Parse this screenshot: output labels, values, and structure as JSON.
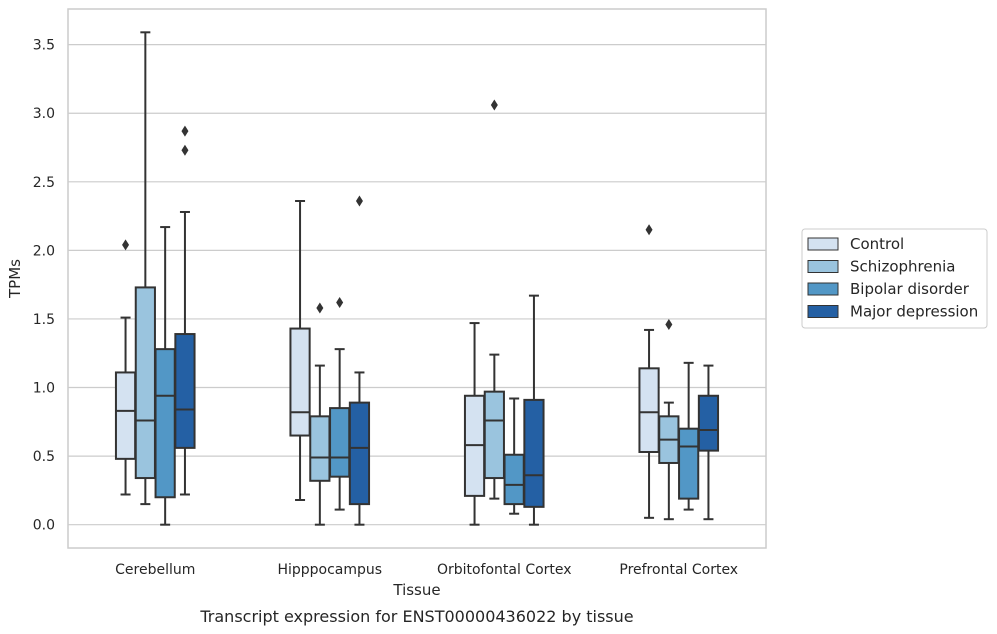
{
  "caption": "Transcript expression for ENST00000436022 by tissue",
  "chart_data": {
    "type": "boxplot",
    "title": "",
    "xlabel": "Tissue",
    "ylabel": "TPMs",
    "ylim": [
      -0.17,
      3.76
    ],
    "yticks": [
      "0.0",
      "0.5",
      "1.0",
      "1.5",
      "2.0",
      "2.5",
      "3.0",
      "3.5"
    ],
    "grid": "horizontal",
    "legend_position": "right",
    "categories": [
      "Cerebellum",
      "Hipppocampus",
      "Orbitofontal Cortex",
      "Prefrontal Cortex"
    ],
    "series": [
      {
        "name": "Control",
        "color": "#d4e2f1",
        "boxes": [
          {
            "whisker_low": 0.22,
            "q1": 0.48,
            "median": 0.83,
            "q3": 1.11,
            "whisker_high": 1.51,
            "outliers": [
              2.04
            ]
          },
          {
            "whisker_low": 0.18,
            "q1": 0.65,
            "median": 0.82,
            "q3": 1.43,
            "whisker_high": 2.36,
            "outliers": []
          },
          {
            "whisker_low": 0.0,
            "q1": 0.21,
            "median": 0.58,
            "q3": 0.94,
            "whisker_high": 1.47,
            "outliers": []
          },
          {
            "whisker_low": 0.05,
            "q1": 0.53,
            "median": 0.82,
            "q3": 1.14,
            "whisker_high": 1.42,
            "outliers": [
              2.15
            ]
          }
        ]
      },
      {
        "name": "Schizophrenia",
        "color": "#9ac4de",
        "boxes": [
          {
            "whisker_low": 0.15,
            "q1": 0.34,
            "median": 0.76,
            "q3": 1.73,
            "whisker_high": 3.59,
            "outliers": []
          },
          {
            "whisker_low": 0.0,
            "q1": 0.32,
            "median": 0.49,
            "q3": 0.79,
            "whisker_high": 1.16,
            "outliers": [
              1.58
            ]
          },
          {
            "whisker_low": 0.19,
            "q1": 0.34,
            "median": 0.76,
            "q3": 0.97,
            "whisker_high": 1.24,
            "outliers": [
              3.06
            ]
          },
          {
            "whisker_low": 0.04,
            "q1": 0.45,
            "median": 0.62,
            "q3": 0.79,
            "whisker_high": 0.89,
            "outliers": [
              1.46
            ]
          }
        ]
      },
      {
        "name": "Bipolar disorder",
        "color": "#5297c6",
        "boxes": [
          {
            "whisker_low": 0.0,
            "q1": 0.2,
            "median": 0.94,
            "q3": 1.28,
            "whisker_high": 2.17,
            "outliers": []
          },
          {
            "whisker_low": 0.11,
            "q1": 0.35,
            "median": 0.49,
            "q3": 0.85,
            "whisker_high": 1.28,
            "outliers": [
              1.62
            ]
          },
          {
            "whisker_low": 0.08,
            "q1": 0.15,
            "median": 0.29,
            "q3": 0.51,
            "whisker_high": 0.92,
            "outliers": []
          },
          {
            "whisker_low": 0.11,
            "q1": 0.19,
            "median": 0.57,
            "q3": 0.7,
            "whisker_high": 1.18,
            "outliers": []
          }
        ]
      },
      {
        "name": "Major depression",
        "color": "#2460a4",
        "boxes": [
          {
            "whisker_low": 0.22,
            "q1": 0.56,
            "median": 0.84,
            "q3": 1.39,
            "whisker_high": 2.28,
            "outliers": [
              2.73,
              2.87
            ]
          },
          {
            "whisker_low": 0.0,
            "q1": 0.15,
            "median": 0.56,
            "q3": 0.89,
            "whisker_high": 1.11,
            "outliers": [
              2.36
            ]
          },
          {
            "whisker_low": 0.0,
            "q1": 0.13,
            "median": 0.36,
            "q3": 0.91,
            "whisker_high": 1.67,
            "outliers": []
          },
          {
            "whisker_low": 0.04,
            "q1": 0.54,
            "median": 0.69,
            "q3": 0.94,
            "whisker_high": 1.16,
            "outliers": []
          }
        ]
      }
    ]
  }
}
